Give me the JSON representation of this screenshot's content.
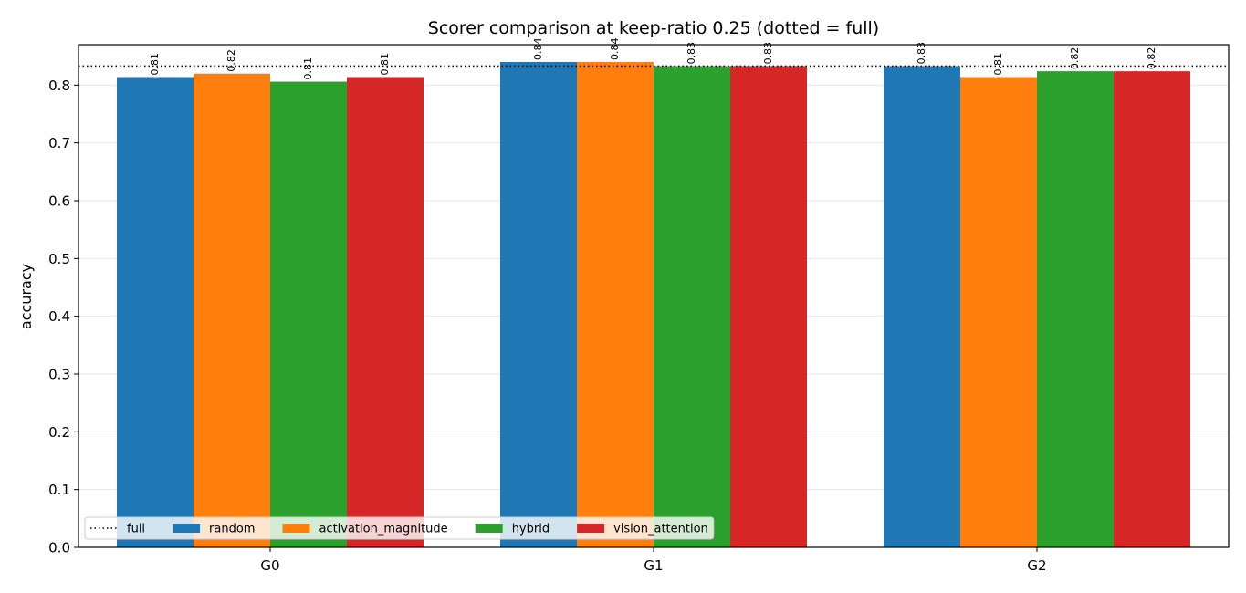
{
  "chart_data": {
    "type": "bar",
    "title": "Scorer comparison at keep-ratio 0.25 (dotted = full)",
    "xlabel": "",
    "ylabel": "accuracy",
    "categories": [
      "G0",
      "G1",
      "G2"
    ],
    "ylim": [
      0,
      0.87
    ],
    "yticks": [
      "0.0",
      "0.1",
      "0.2",
      "0.3",
      "0.4",
      "0.5",
      "0.6",
      "0.7",
      "0.8"
    ],
    "grid": true,
    "legend_position": "lower-left",
    "reference_line": {
      "name": "full",
      "value": 0.833,
      "style": "dotted",
      "color": "#000000"
    },
    "series": [
      {
        "name": "random",
        "color": "#1f77b4",
        "values": [
          0.814,
          0.84,
          0.833
        ],
        "labels": [
          "0.81",
          "0.84",
          "0.83"
        ]
      },
      {
        "name": "activation_magnitude",
        "color": "#ff7f0e",
        "values": [
          0.82,
          0.84,
          0.814
        ],
        "labels": [
          "0.82",
          "0.84",
          "0.81"
        ]
      },
      {
        "name": "hybrid",
        "color": "#2ca02c",
        "values": [
          0.806,
          0.833,
          0.824
        ],
        "labels": [
          "0.81",
          "0.83",
          "0.82"
        ]
      },
      {
        "name": "vision_attention",
        "color": "#d62728",
        "values": [
          0.814,
          0.833,
          0.824
        ],
        "labels": [
          "0.81",
          "0.83",
          "0.82"
        ]
      }
    ]
  }
}
